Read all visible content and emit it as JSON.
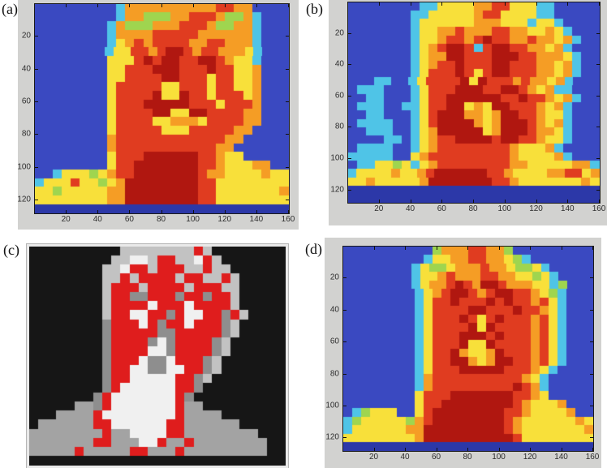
{
  "figure": {
    "panel_background": "#d2d2d0",
    "axis_color": "#1a1a1a",
    "tick_label_color": "#2e2e2e",
    "palettes": {
      "jet": {
        "b": "#3a49c1",
        "d": "#2c38a8",
        "c": "#4fc4e7",
        "g": "#9fd54f",
        "y": "#f8e03a",
        "o": "#f59d25",
        "r": "#e03c20",
        "D": "#b01710"
      },
      "grayred": {
        "K": "#161616",
        "E": "#8e8e8e",
        "L": "#c2c2c2",
        "W": "#f0f0f0",
        "R": "#df1d1d",
        "S": "#a3a3a3"
      }
    },
    "panels": [
      {
        "id": "a",
        "label": "(a)",
        "type": "thermal",
        "palette": "jet",
        "x_ticks": [
          20,
          40,
          60,
          80,
          100,
          120,
          140,
          160
        ],
        "y_ticks": [
          20,
          40,
          60,
          80,
          100,
          120
        ],
        "x_max": 160,
        "y_max": 128,
        "grid": [
          "bbbbbbbbbcoooooooooorroobbbb",
          "bbbbbbbbbcoogggoorrroggocbbb",
          "bbbbbbbbcogggooorrroggoocbbb",
          "bbbbbbbbcoooorrrrroooooocbbb",
          "bbbbbbbbcyororrrroorrooocbbb",
          "bbbbbbbbcyyrrorDDrorroooycbbb",
          "bbbbbbbbyyyrDrDDrrDDroyycbbb",
          "bbbbbbbbyyrrrDDDrrrDrryyobbb",
          "bbbbbbbbyyrrrrDDrrryrryyobbb",
          "bbbbbbbbyrrrrryyrrryrryyobbb",
          "bbbbbbbbyrrrrDyyDrryrrryobbb",
          "bbbbbbbbyrrrDDDDDrrryrrrobbb",
          "bbbbbbbbyrrrrDDyyDDrrrroobbb",
          "bbbbbbbbyrrrryyoooyrrrroobbb",
          "bbbbbbbbyrrrrryyyrrrrroobbbb",
          "bbbbbbbborrrrrrrrrrrroobbbbb",
          "bbbbbbbborrrrrrrrrrroobbbbbb",
          "bbbbbbbbyrrrDDDDDDrroyybbbbb",
          "bbbbbbbbyrrDDDDDDDrroyyyoobb",
          "bbcyyygyorrDDDDDDDrooyyyyoyy",
          "cyyyryygyoDDDDDDDDrryyyyyyyy",
          "yygyyyyyooDDDDDDDDrryyyyyyyo",
          "yyyyyyyyooDDDDDDDDrryyyyyyyy",
          "dddddddddddddddddddddddddddd"
        ]
      },
      {
        "id": "b",
        "label": "(b)",
        "type": "thermal",
        "palette": "jet",
        "x_ticks": [
          20,
          40,
          60,
          80,
          100,
          120,
          140,
          160
        ],
        "y_ticks": [
          20,
          40,
          60,
          80,
          100,
          120
        ],
        "x_max": 160,
        "y_max": 128,
        "grid": [
          "bbbbbbbbccyyyyoorryyyccbbbbb",
          "bbbbbbbccyyyyyorryyyyccbbbbb",
          "bbbbbbbcyyyyyyoooyyycyycbbbb",
          "bbbbbbbcyyoorooorrooyyoycbbb",
          "bbbbbbbcyyorrorDrroorooyocbb",
          "bbbbbbbcyorDDrcrDDrrooyocbbb",
          "bbbbbbbcyooDDrrrDDDrroooycbb",
          "bbbbbbbcyorrDrrrDDrrrooyocbb",
          "bbbbbbbcyrrrDryrDDrrrooyocbb",
          "bbbccbbcyrrrrDyDrrrorooyocbbb",
          "bcccbbbcyrrrDDDrrDDroyoccbbb",
          "bbccbbbcyrrDDDDDDrrDrroyocbb",
          "bcccbbccyrrDDyoyDDrrroyocbbb",
          "bbccbbbcyrDDDooyoDDrroyycbbb",
          "bccccbbcyrDDDDoyoDDDroyocbbb",
          "bbcccbbcyoDDDDDyoDDDrooycbbb",
          "bbbbccbcyorrDDDDrDDrroyycbbb",
          "bccccbbcyorrrrrrrroyyyocbbbb",
          "cccccbbyorrrrrrrrroyyyyocbbb",
          "bccyygycyorrrrrrrrooyyyyyooc",
          "cyyyyoyyorDDDDDDrroyyyyoorryo",
          "yyoyyyyyoDDDDDDDrroyyyyyyyoy",
          "dddddddddddddddddddddddddddd",
          "dddddddddddddddddddddddddddd"
        ]
      },
      {
        "id": "c",
        "label": "(c)",
        "type": "photo",
        "palette": "grayred",
        "grid": [
          "KKKKKKKKKKLLLLLLLLRLKKKKKKKK",
          "KKKKKKKKKLLWWLRRLLWRLKKKKKKK",
          "KKKKKKKKLLWRRLRRRLLRLLKKKKKK",
          "KKKKKKKKLLRLRRRRLRRLLRLKKKKK",
          "KKKKKKKKLRRRLRRRRLRRRLLKKKKK",
          "KKKKKKKKLRREERRRERRERRLKKKKK",
          "KKKKKKKKLRRRRWRRRWRRRRLKKKKK",
          "KKKKKKKKLRRWWRRERWWRRERLKKKK",
          "KKKKKKKKERRRWRERRWRRRELKKKKK",
          "KKKKKKKKERRRRREERRRRRELKKKKK",
          "KKKKKKKKERRRREWERRRRELKKKKKK",
          "KKKKKKKKERRRRWWERRRRELKKKKKK",
          "KKKKKKKKERRRWEEWRRRELKKKKKKK",
          "KKKKKKKKERRWWEEWWRRELKKKKKKK",
          "KKKKKKKKERRWWWWWRRELKKKKKKKK",
          "KKKKKKKKERWWWWWWRREKKKKKKKKK",
          "KKKKKKKERWWWWWWWREKKKKKKKKKK",
          "KKKKKSSERWWWWWWWRSSKKKKKKKKK",
          "KKKSSSSRWWWWWWWWRSSSSKKKKKKK",
          "KSSSSSSRRWWWWWWRRSSSSSSKKKKK",
          "SSSSSSSSRSSWWWWRRSSSSSSSSKKK",
          "SSSSSSSRRSSSWWRSSRSSSSSSSSKK",
          "SSSSSRSSSSSRRSSSRSSSSSSSSSKK",
          "KKKKKKKKKKKKKKKKKKKKKKKKKKKK"
        ]
      },
      {
        "id": "d",
        "label": "(d)",
        "type": "thermal",
        "palette": "jet",
        "x_ticks": [
          20,
          40,
          60,
          80,
          100,
          120,
          140,
          160
        ],
        "y_ticks": [
          20,
          40,
          60,
          80,
          100,
          120
        ],
        "x_max": 160,
        "y_max": 128,
        "grid": [
          "bbbbbbbbbbgooorroogbbbbbbbbb",
          "bbbbbbbbbcyyoorrooygcbbbbbbb",
          "bbbbbbbbcyggyooorooyggycbbbbb",
          "bbbbbbbbcyyorooorrooyygycbbbb",
          "bbbbbbbbcyoorDroDDroooyycgbbb",
          "bbbbbbbbcyorDDrorDDrroygcbbb",
          "bbbbbbbbcyrrDrrrDrDrrorycbbb",
          "bbbbbbbbcyrrrrDDrrrDrroycbbb",
          "bbbbbbbbcyrrrDryrDrrrorycbbb",
          "bbbbbbbbcyrrrrDyDrrrrorycbbb",
          "bbbbbbbbcyrrrDDDrDrrrorycbbb",
          "bbbbbbbbcyrrrDyyDrrrrorycbbb",
          "bbbbbbbbcyrrDoyyoDrrrorycbbb",
          "bbbbbbbbcyrrDDoyoDDrrorycbbb",
          "bbbbbbbbcyrrrDDDDDrrroycbbbb",
          "bbbbbbbbcorrrrrrrrrroycbbbbb",
          "bbbbbbbbcorrrrrrrrrDrocbbbbb",
          "bbbbbbbbyrrrDDDDDDDrroybbbbb",
          "bbbbbbbbyrrDDDDDDDDroyyyobbb",
          "bcgyyybbyrDDDDDDDDrroyyyyobb",
          "cgyyyyygorDDDDDDDDroyyyyyyoy",
          "cyyyyyyooDDDDDDDDDroyyyyyyyo",
          "yyyyyyyyoDDDDDDDDDDryyyyyyyy",
          "dddddddddddddddddddddddddddd"
        ]
      }
    ]
  }
}
